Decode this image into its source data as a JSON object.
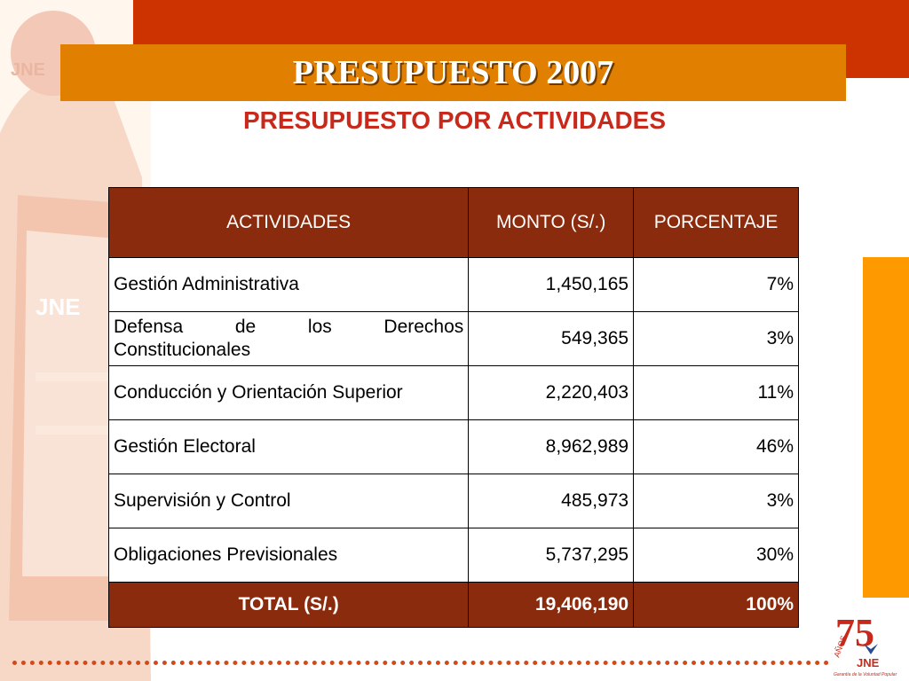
{
  "header": {
    "title": "PRESUPUESTO 2007",
    "subtitle": "PRESUPUESTO POR ACTIVIDADES"
  },
  "table": {
    "columns": [
      "ACTIVIDADES",
      "MONTO (S/.)",
      "PORCENTAJE"
    ],
    "rows": [
      {
        "actividad": "Gestión Administrativa",
        "monto": "1,450,165",
        "porcentaje": "7%"
      },
      {
        "actividad": "Defensa de los Derechos Constitucionales",
        "monto": "549,365",
        "porcentaje": "3%"
      },
      {
        "actividad": "Conducción y Orientación Superior",
        "monto": "2,220,403",
        "porcentaje": "11%"
      },
      {
        "actividad": "Gestión Electoral",
        "monto": "8,962,989",
        "porcentaje": "46%"
      },
      {
        "actividad": "Supervisión y Control",
        "monto": "485,973",
        "porcentaje": "3%"
      },
      {
        "actividad": "Obligaciones Previsionales",
        "monto": "5,737,295",
        "porcentaje": "30%"
      }
    ],
    "total": {
      "label": "TOTAL (S/.)",
      "monto": "19,406,190",
      "porcentaje": "100%"
    }
  },
  "logo": {
    "number": "75",
    "anos": "AÑOS",
    "org": "JNE",
    "tagline": "Garantía de la Voluntad Popular"
  },
  "background_watermark": {
    "org_text": "JNE"
  },
  "colors": {
    "top_band": "#cc3300",
    "title_bar": "#e07f00",
    "subtitle": "#c8291a",
    "table_header": "#8b2b0d",
    "right_band": "#ff9900"
  }
}
